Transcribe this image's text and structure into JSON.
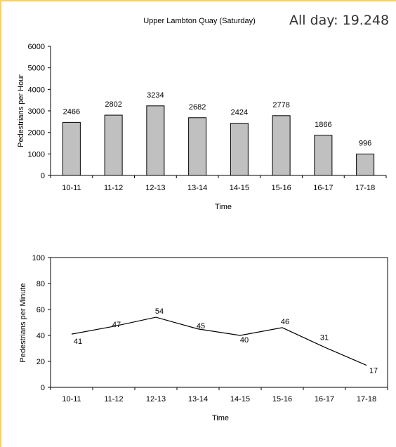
{
  "summary": {
    "label": "All day:",
    "value": "19.248"
  },
  "chart_data": [
    {
      "type": "bar",
      "title": "Upper Lambton Quay (Saturday)",
      "xlabel": "Time",
      "ylabel": "Pedestrians per Hour",
      "categories": [
        "10-11",
        "11-12",
        "12-13",
        "13-14",
        "14-15",
        "15-16",
        "16-17",
        "17-18"
      ],
      "values": [
        2466,
        2802,
        3234,
        2682,
        2424,
        2778,
        1866,
        996
      ],
      "ylim": [
        0,
        6000
      ],
      "yticks": [
        0,
        1000,
        2000,
        3000,
        4000,
        5000,
        6000
      ],
      "grid": false,
      "colors": {
        "bar": "#c0c0c0",
        "edge": "#000000"
      }
    },
    {
      "type": "line",
      "title": "",
      "xlabel": "Time",
      "ylabel": "Pedestrians per Minute",
      "categories": [
        "10-11",
        "11-12",
        "12-13",
        "13-14",
        "14-15",
        "15-16",
        "16-17",
        "17-18"
      ],
      "values": [
        41,
        47,
        54,
        45,
        40,
        46,
        31,
        17
      ],
      "ylim": [
        0,
        100
      ],
      "yticks": [
        0,
        20,
        40,
        60,
        80,
        100
      ],
      "grid": false,
      "colors": {
        "line": "#000000"
      }
    }
  ]
}
